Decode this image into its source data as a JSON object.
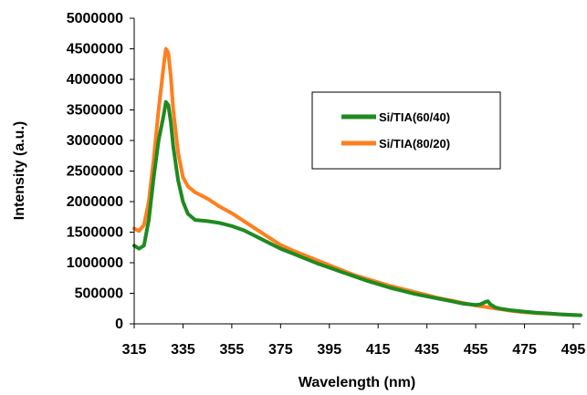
{
  "chart_data": {
    "type": "line",
    "title": "",
    "xlabel": "Wavelength (nm)",
    "ylabel": "Intensity (a.u.)",
    "xlim": [
      315,
      498
    ],
    "ylim": [
      0,
      5000000
    ],
    "xticks": [
      315,
      335,
      355,
      375,
      395,
      415,
      435,
      455,
      475,
      495
    ],
    "yticks": [
      0,
      500000,
      1000000,
      1500000,
      2000000,
      2500000,
      3000000,
      3500000,
      4000000,
      4500000,
      5000000
    ],
    "grid": false,
    "legend_placement": "upper-right",
    "series": [
      {
        "name": "Si/TIA(60/40)",
        "color": "#1f8a1f",
        "x": [
          315,
          317,
          319,
          321,
          323,
          325,
          327,
          328,
          329,
          330,
          331,
          333,
          335,
          337,
          340,
          345,
          350,
          355,
          360,
          365,
          370,
          375,
          380,
          385,
          390,
          395,
          400,
          405,
          410,
          415,
          420,
          425,
          430,
          435,
          440,
          445,
          450,
          455,
          457,
          459,
          460,
          461,
          463,
          465,
          470,
          475,
          480,
          485,
          490,
          495,
          498
        ],
        "y": [
          1280000,
          1230000,
          1280000,
          1700000,
          2400000,
          3000000,
          3400000,
          3630000,
          3580000,
          3300000,
          2900000,
          2350000,
          2000000,
          1800000,
          1700000,
          1680000,
          1650000,
          1600000,
          1530000,
          1430000,
          1330000,
          1230000,
          1150000,
          1070000,
          990000,
          920000,
          850000,
          780000,
          710000,
          650000,
          590000,
          540000,
          490000,
          450000,
          410000,
          370000,
          330000,
          310000,
          320000,
          360000,
          370000,
          320000,
          270000,
          250000,
          220000,
          200000,
          180000,
          170000,
          155000,
          145000,
          140000
        ]
      },
      {
        "name": "Si/TIA(80/20)",
        "color": "#ff7f1e",
        "x": [
          315,
          317,
          319,
          321,
          323,
          325,
          327,
          328,
          329,
          330,
          331,
          333,
          335,
          337,
          340,
          345,
          350,
          355,
          360,
          365,
          370,
          375,
          380,
          385,
          390,
          395,
          400,
          405,
          410,
          415,
          420,
          425,
          430,
          435,
          440,
          445,
          450,
          455,
          460,
          465,
          470,
          475,
          480,
          485,
          490,
          495,
          498
        ],
        "y": [
          1560000,
          1520000,
          1620000,
          2000000,
          2700000,
          3500000,
          4200000,
          4500000,
          4430000,
          4050000,
          3500000,
          2800000,
          2400000,
          2250000,
          2150000,
          2050000,
          1920000,
          1810000,
          1680000,
          1550000,
          1420000,
          1290000,
          1200000,
          1120000,
          1040000,
          960000,
          880000,
          800000,
          740000,
          680000,
          620000,
          570000,
          520000,
          470000,
          420000,
          380000,
          340000,
          300000,
          270000,
          240000,
          210000,
          190000,
          175000,
          165000,
          155000,
          145000,
          140000
        ]
      }
    ]
  }
}
